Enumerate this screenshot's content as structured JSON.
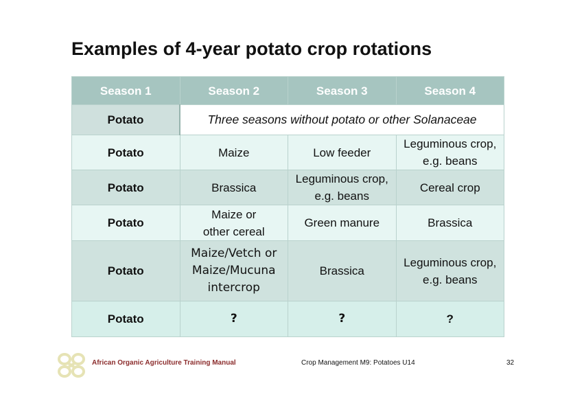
{
  "title": "Examples of 4-year potato crop rotations",
  "table": {
    "headers": [
      "Season 1",
      "Season 2",
      "Season 3",
      "Season 4"
    ],
    "row0": {
      "s1": "Potato",
      "span": "Three seasons without potato or other Solanaceae"
    },
    "rows": [
      {
        "s1": "Potato",
        "s2": [
          "Maize"
        ],
        "s3": [
          "Low feeder"
        ],
        "s4": [
          "Leguminous crop,",
          "e.g. beans"
        ]
      },
      {
        "s1": "Potato",
        "s2": [
          "Brassica"
        ],
        "s3": [
          "Leguminous crop,",
          "e.g. beans"
        ],
        "s4": [
          "Cereal crop"
        ]
      },
      {
        "s1": "Potato",
        "s2": [
          "Maize or",
          "other cereal"
        ],
        "s3": [
          "Green manure"
        ],
        "s4": [
          "Brassica"
        ]
      },
      {
        "s1": "Potato",
        "s2": [
          "Maize/Vetch or",
          "Maize/Mucuna",
          "intercrop"
        ],
        "s3": [
          "Brassica"
        ],
        "s4": [
          "Leguminous crop,",
          "e.g. beans"
        ]
      },
      {
        "s1": "Potato",
        "s2": [
          "?"
        ],
        "s3": [
          "?"
        ],
        "s4": [
          "?"
        ]
      }
    ]
  },
  "footer": {
    "left": "African Organic Agriculture Training Manual",
    "middle": "Crop Management M9: Potatoes U14",
    "page": "32",
    "logo_color": "#e6e3b5"
  }
}
